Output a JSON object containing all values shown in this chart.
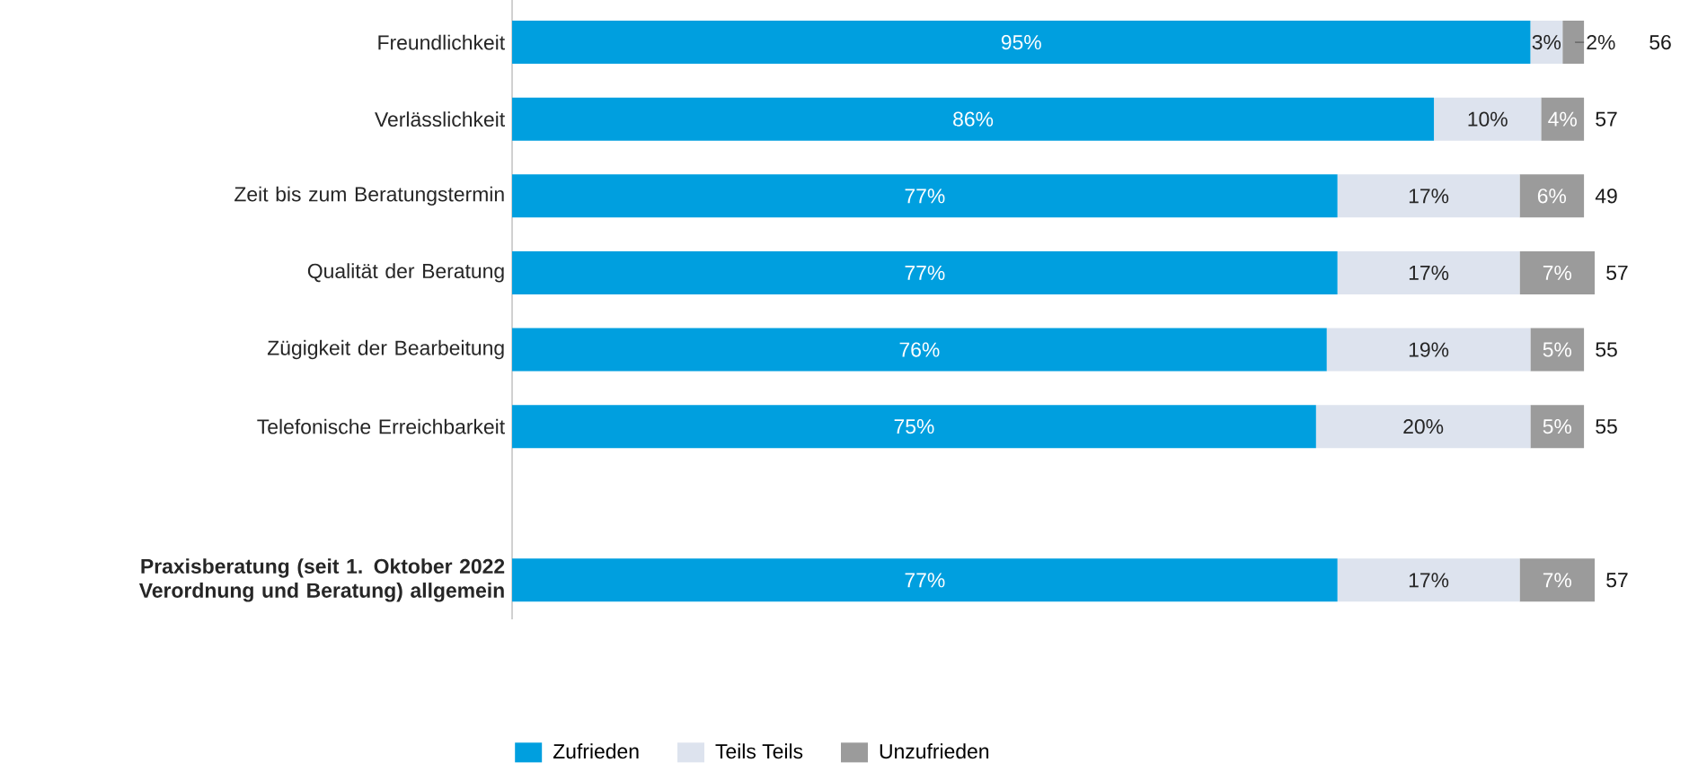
{
  "chart_data": {
    "type": "bar",
    "orientation": "horizontal",
    "stacked": true,
    "categories": [
      "Freundlichkeit",
      "Verlässlichkeit",
      "Zeit bis zum Beratungstermin",
      "Qualität der Beratung",
      "Zügigkeit der Bearbeitung",
      "Telefonische Erreichbarkeit",
      null,
      "**Praxisberatung (seit 1. Oktober 2022 Verordnung und Beratung) allgemein**"
    ],
    "series": [
      {
        "name": "Zufrieden",
        "color": "#009fdf",
        "values": [
          95,
          86,
          77,
          77,
          76,
          75,
          null,
          77
        ],
        "value_labels": [
          "95%",
          "86%",
          "77%",
          "77%",
          "76%",
          "75%",
          null,
          "77%"
        ]
      },
      {
        "name": "Teils Teils",
        "color": "#dde3ee",
        "values": [
          3,
          10,
          17,
          17,
          19,
          20,
          null,
          17
        ],
        "value_labels": [
          "3%",
          "10%",
          "17%",
          "17%",
          "19%",
          "20%",
          null,
          "17%"
        ]
      },
      {
        "name": "Unzufrieden",
        "color": "#9b9b9b",
        "values": [
          2,
          4,
          6,
          7,
          5,
          5,
          null,
          7
        ],
        "value_labels": [
          "2%",
          "4%",
          "6%",
          "7%",
          "5%",
          "5%",
          null,
          "7%"
        ]
      }
    ],
    "annotations": [
      "56",
      "57",
      "49",
      "57",
      "55",
      "55",
      "57"
    ],
    "legend": "bottom"
  }
}
